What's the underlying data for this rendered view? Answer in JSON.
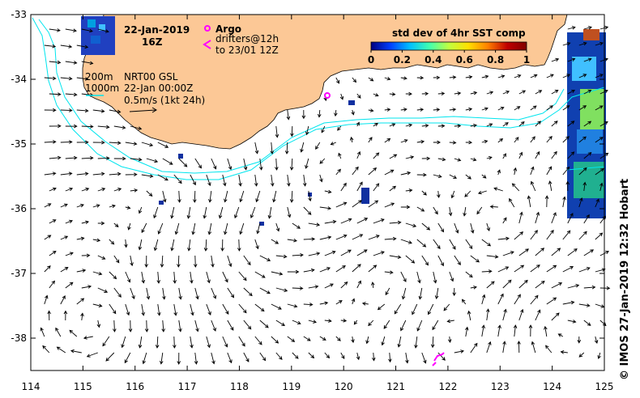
{
  "title": {
    "date": "22-Jan-2019",
    "time": "16Z"
  },
  "argo": {
    "label": "Argo",
    "color": "#ff00ff"
  },
  "drifters": {
    "line1": "drifters@12h",
    "line2": "to 23/01 12Z",
    "color": "#ff00ff"
  },
  "contours": {
    "c200": "200m",
    "c1000": "1000m",
    "color": "#00e5ee"
  },
  "product": {
    "name": "NRT00 GSL",
    "valid": "22-Jan 00:00Z",
    "scale": "0.5m/s (1kt 24h)"
  },
  "colorbar": {
    "title": "std dev of 4hr SST comp",
    "ticks": [
      "0",
      "0.2",
      "0.4",
      "0.6",
      "0.8",
      "1"
    ],
    "colors": [
      "#000080",
      "#0040ff",
      "#00c0ff",
      "#40ffb0",
      "#c0ff40",
      "#ffe000",
      "#ff8000",
      "#c00000",
      "#800000"
    ]
  },
  "axes": {
    "x_ticks": [
      "114",
      "115",
      "116",
      "117",
      "118",
      "119",
      "120",
      "121",
      "122",
      "123",
      "124",
      "125"
    ],
    "y_ticks": [
      "-33",
      "-34",
      "-35",
      "-36",
      "-37",
      "-38"
    ],
    "xlim": [
      114,
      125
    ],
    "ylim": [
      -38.5,
      -33
    ]
  },
  "credit": "©  IMOS 27-Jan-2019 12:32 Hobart",
  "land_color": "#fcc896"
}
